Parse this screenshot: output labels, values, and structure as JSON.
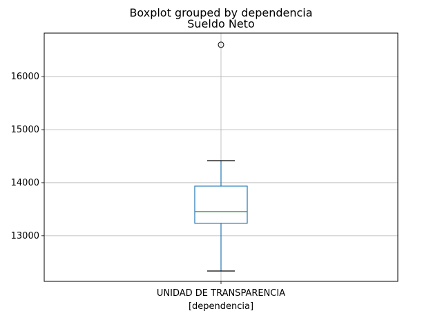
{
  "chart_data": {
    "type": "boxplot",
    "suptitle": "Boxplot grouped by dependencia",
    "title": "Sueldo Neto",
    "xlabel": "[dependencia]",
    "ylabel": "",
    "categories": [
      "UNIDAD DE TRANSPARENCIA"
    ],
    "boxes": [
      {
        "category": "UNIDAD DE TRANSPARENCIA",
        "whisker_low": 12335,
        "q1": 13235,
        "median": 13455,
        "q3": 13935,
        "whisker_high": 14415,
        "outliers": [
          16600
        ]
      }
    ],
    "ylim": [
      12140,
      16820
    ],
    "yticks": [
      13000,
      14000,
      15000,
      16000
    ],
    "ytick_labels": [
      "13000",
      "14000",
      "15000",
      "16000"
    ],
    "grid": true,
    "colors": {
      "box": "#1f77b4",
      "median": "#2ca02c",
      "whisker_cap": "#000000",
      "outlier": "#000000",
      "grid": "#b0b0b0"
    }
  }
}
